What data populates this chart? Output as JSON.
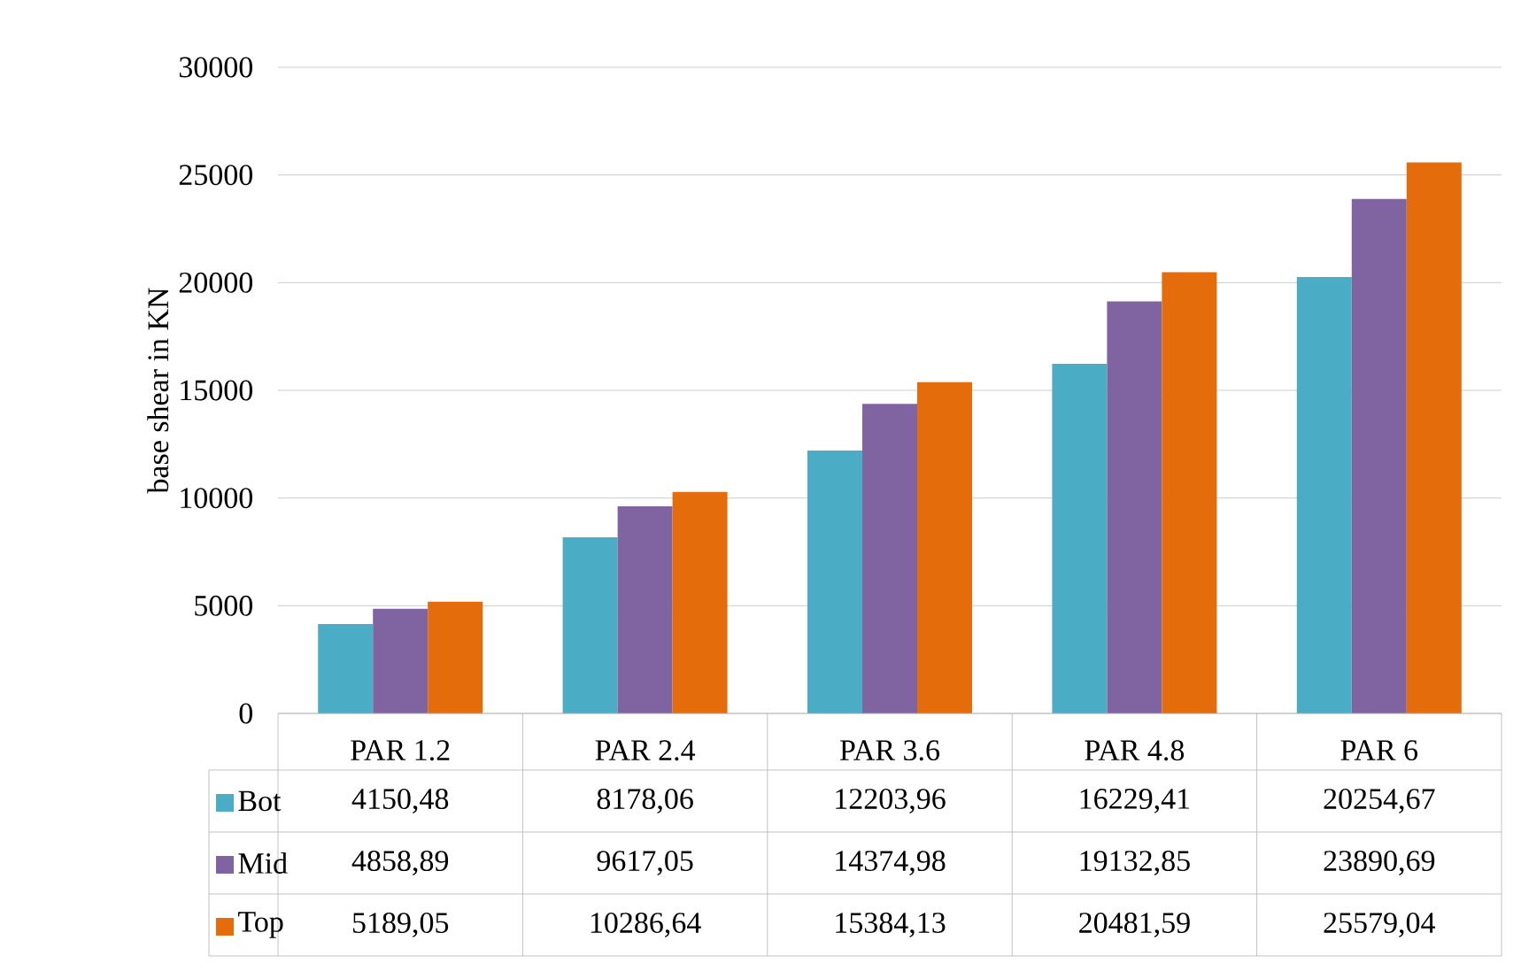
{
  "chart_data": {
    "type": "bar",
    "ylabel": "base shear in KN",
    "categories": [
      "PAR 1.2",
      "PAR 2.4",
      "PAR 3.6",
      "PAR 4.8",
      "PAR 6"
    ],
    "series": [
      {
        "name": "Bot",
        "color": "#4bacc6",
        "values": [
          4150.48,
          8178.06,
          12203.96,
          16229.41,
          20254.67
        ],
        "value_labels": [
          "4150,48",
          "8178,06",
          "12203,96",
          "16229,41",
          "20254,67"
        ]
      },
      {
        "name": "Mid",
        "color": "#8064a2",
        "values": [
          4858.89,
          9617.05,
          14374.98,
          19132.85,
          23890.69
        ],
        "value_labels": [
          "4858,89",
          "9617,05",
          "14374,98",
          "19132,85",
          "23890,69"
        ]
      },
      {
        "name": "Top",
        "color": "#e46c0a",
        "values": [
          5189.05,
          10286.64,
          15384.13,
          20481.59,
          25579.04
        ],
        "value_labels": [
          "5189,05",
          "10286,64",
          "15384,13",
          "20481,59",
          "25579,04"
        ]
      }
    ],
    "ylim": [
      0,
      30000
    ],
    "yticks": [
      0,
      5000,
      10000,
      15000,
      20000,
      25000,
      30000
    ],
    "grid": "y",
    "legend": "bottom"
  }
}
